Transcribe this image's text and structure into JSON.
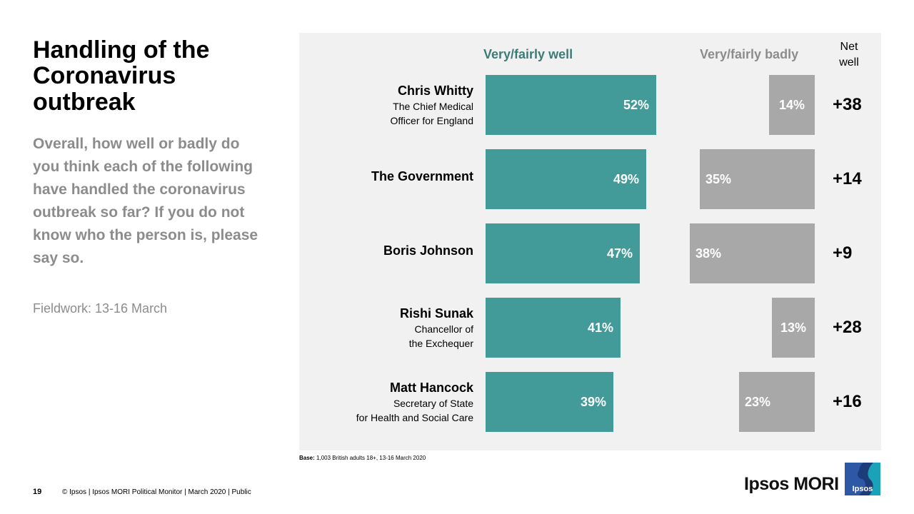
{
  "title_lines": [
    "Handling of the",
    "Coronavirus",
    "outbreak"
  ],
  "question": "Overall, how well or badly do you think each of the following have handled the coronavirus outbreak so far?  If you do not know who the person is, please say so.",
  "fieldwork": "Fieldwork:  13-16 March",
  "base": {
    "label": "Base:",
    "text": " 1,003 British adults 18+, 13-16 March 2020"
  },
  "footer": {
    "page_number": "19",
    "text": "© Ipsos | Ipsos MORI Political Monitor | March 2020 | Public"
  },
  "logo": {
    "brand": "Ipsos MORI",
    "badge": "Ipsos"
  },
  "colors": {
    "well": "#429b98",
    "badly": "#a8a8a8",
    "panel": "#f1f1f1",
    "header_well": "#3b7b78"
  },
  "chart_data": {
    "type": "bar",
    "orientation": "horizontal",
    "title": "",
    "column_headers": {
      "well": "Very/fairly  well",
      "badly": "Very/fairly  badly",
      "net": [
        "Net",
        "well"
      ]
    },
    "categories": [
      "Chris Whitty",
      "The Government",
      "Boris Johnson",
      "Rishi Sunak",
      "Matt Hancock"
    ],
    "subtitles": [
      [
        "The Chief Medical",
        "Officer for England"
      ],
      [],
      [],
      [
        "Chancellor of",
        "the Exchequer"
      ],
      [
        "Secretary of State",
        "for Health and Social Care"
      ]
    ],
    "series": [
      {
        "name": "Very/fairly  well",
        "values": [
          52,
          49,
          47,
          41,
          39
        ],
        "labels": [
          "52%",
          "49%",
          "47%",
          "41%",
          "39%"
        ]
      },
      {
        "name": "Very/fairly  badly",
        "values": [
          14,
          35,
          38,
          13,
          23
        ],
        "labels": [
          "14%",
          "35%",
          "38%",
          "13%",
          "23%"
        ]
      }
    ],
    "net_well": [
      "+38",
      "+14",
      "+9",
      "+28",
      "+16"
    ],
    "unit": "%"
  }
}
